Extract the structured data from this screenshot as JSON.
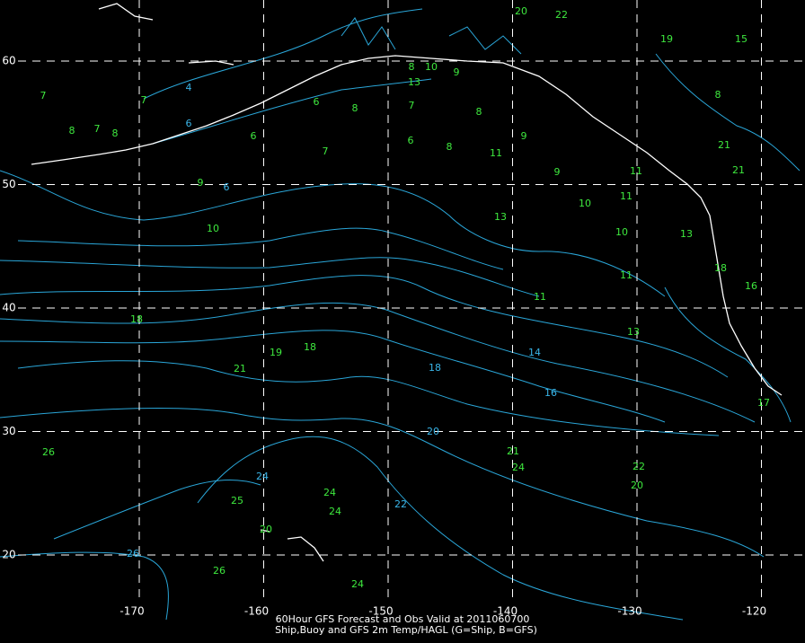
{
  "map": {
    "lon_ticks": [
      -170,
      -160,
      -150,
      -140,
      -130,
      -120
    ],
    "lat_ticks": [
      60,
      50,
      40,
      30,
      20
    ],
    "caption": [
      "60Hour GFS Forecast and Obs Valid at 2011060700",
      "Ship,Buoy and GFS 2m Temp/HAGL (G=Ship, B=GFS)"
    ],
    "ship_obs": [
      8,
      7,
      8,
      7,
      7,
      9,
      10,
      18,
      19,
      18,
      21,
      26,
      25,
      20,
      24,
      24,
      26,
      24,
      21,
      24,
      22,
      20,
      13,
      11,
      11,
      10,
      10,
      13,
      9,
      11,
      9,
      8,
      8,
      6,
      7,
      8,
      7,
      6,
      6,
      13,
      9,
      10,
      8,
      20,
      22,
      19,
      15,
      8,
      21,
      21,
      13,
      18,
      16,
      17,
      11,
      11
    ],
    "contour_labels": [
      4,
      6,
      6,
      24,
      26,
      22,
      20,
      18,
      14,
      16
    ]
  }
}
